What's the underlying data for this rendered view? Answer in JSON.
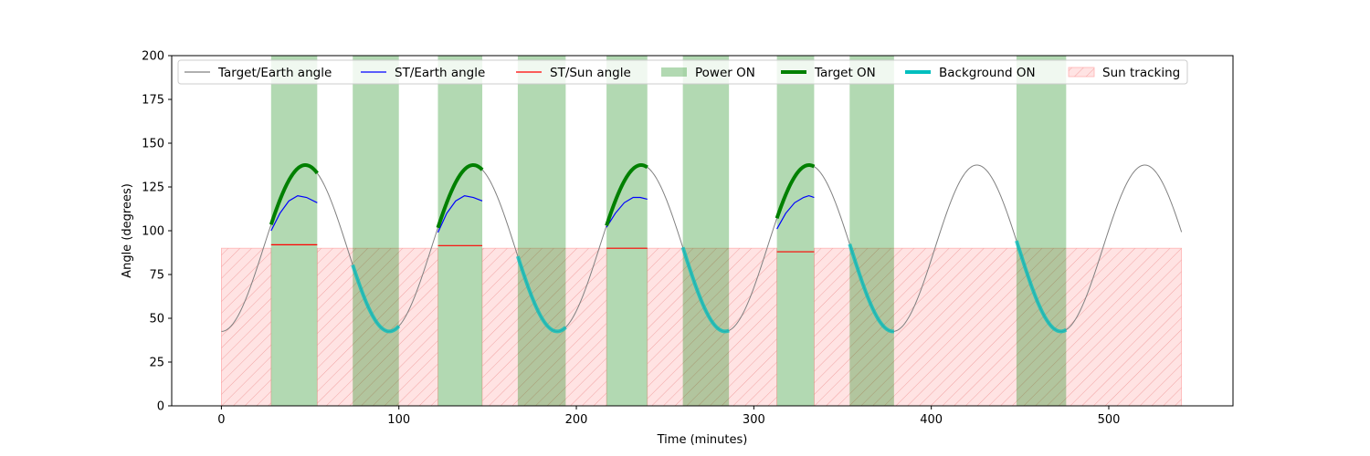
{
  "chart_data": {
    "type": "line",
    "title": "",
    "xlabel": "Time (minutes)",
    "ylabel": "Angle (degrees)",
    "xlim": [
      -28,
      570
    ],
    "ylim": [
      0,
      200
    ],
    "x_ticks": [
      0,
      100,
      200,
      300,
      400,
      500
    ],
    "y_ticks": [
      0,
      25,
      50,
      75,
      100,
      125,
      150,
      175,
      200
    ],
    "grid": false,
    "legend_position": "top",
    "legend": [
      {
        "label": "Target/Earth angle",
        "kind": "line",
        "color": "#808080"
      },
      {
        "label": "ST/Earth angle",
        "kind": "line",
        "color": "#0000ff"
      },
      {
        "label": "ST/Sun angle",
        "kind": "line",
        "color": "#ff0000"
      },
      {
        "label": "Power ON",
        "kind": "patch",
        "color": "#008000"
      },
      {
        "label": "Target ON",
        "kind": "thick-line",
        "color": "#008000"
      },
      {
        "label": "Background ON",
        "kind": "thick-line",
        "color": "#00bfbf"
      },
      {
        "label": "Sun tracking",
        "kind": "hatch",
        "color": "#ff9999"
      }
    ],
    "target_earth_angle": {
      "name": "Target/Earth angle",
      "color": "#808080",
      "mean": 90,
      "amplitude": 47.5,
      "period_minutes": 94.6,
      "first_minimum_minutes": 0,
      "x_range": [
        0,
        541
      ]
    },
    "power_on_intervals": [
      [
        28,
        54
      ],
      [
        74,
        100
      ],
      [
        122,
        147
      ],
      [
        167,
        194
      ],
      [
        217,
        240
      ],
      [
        260,
        286
      ],
      [
        313,
        334
      ],
      [
        354,
        379
      ],
      [
        448,
        476
      ]
    ],
    "target_on_intervals": [
      [
        28,
        54
      ],
      [
        122,
        147
      ],
      [
        217,
        240
      ],
      [
        313,
        334
      ]
    ],
    "background_on_intervals": [
      [
        74,
        100
      ],
      [
        167,
        194
      ],
      [
        260,
        286
      ],
      [
        354,
        379
      ],
      [
        448,
        476
      ]
    ],
    "st_earth_angle": {
      "name": "ST/Earth angle",
      "color": "#0000ff",
      "segments": [
        {
          "x": [
            28,
            33,
            38,
            43,
            48,
            54
          ],
          "y": [
            100,
            110,
            117,
            120,
            119,
            116
          ]
        },
        {
          "x": [
            122,
            127,
            132,
            137,
            142,
            147
          ],
          "y": [
            99,
            110,
            117,
            120,
            119,
            117
          ]
        },
        {
          "x": [
            217,
            222,
            227,
            232,
            236,
            240
          ],
          "y": [
            102,
            110,
            116,
            119,
            119,
            118
          ]
        },
        {
          "x": [
            313,
            318,
            323,
            328,
            331,
            334
          ],
          "y": [
            101,
            110,
            116,
            119,
            120,
            119
          ]
        }
      ]
    },
    "st_sun_angle": {
      "name": "ST/Sun angle",
      "color": "#ff0000",
      "segments": [
        {
          "x": [
            28,
            54
          ],
          "y": [
            92,
            92
          ]
        },
        {
          "x": [
            122,
            147
          ],
          "y": [
            91.5,
            91.5
          ]
        },
        {
          "x": [
            217,
            240
          ],
          "y": [
            90,
            90
          ]
        },
        {
          "x": [
            313,
            334
          ],
          "y": [
            88,
            88
          ]
        }
      ]
    },
    "sun_tracking": {
      "name": "Sun tracking",
      "y_max": 90,
      "intervals": [
        [
          0,
          28
        ],
        [
          54,
          122
        ],
        [
          147,
          217
        ],
        [
          240,
          313
        ],
        [
          334,
          541
        ]
      ]
    }
  }
}
